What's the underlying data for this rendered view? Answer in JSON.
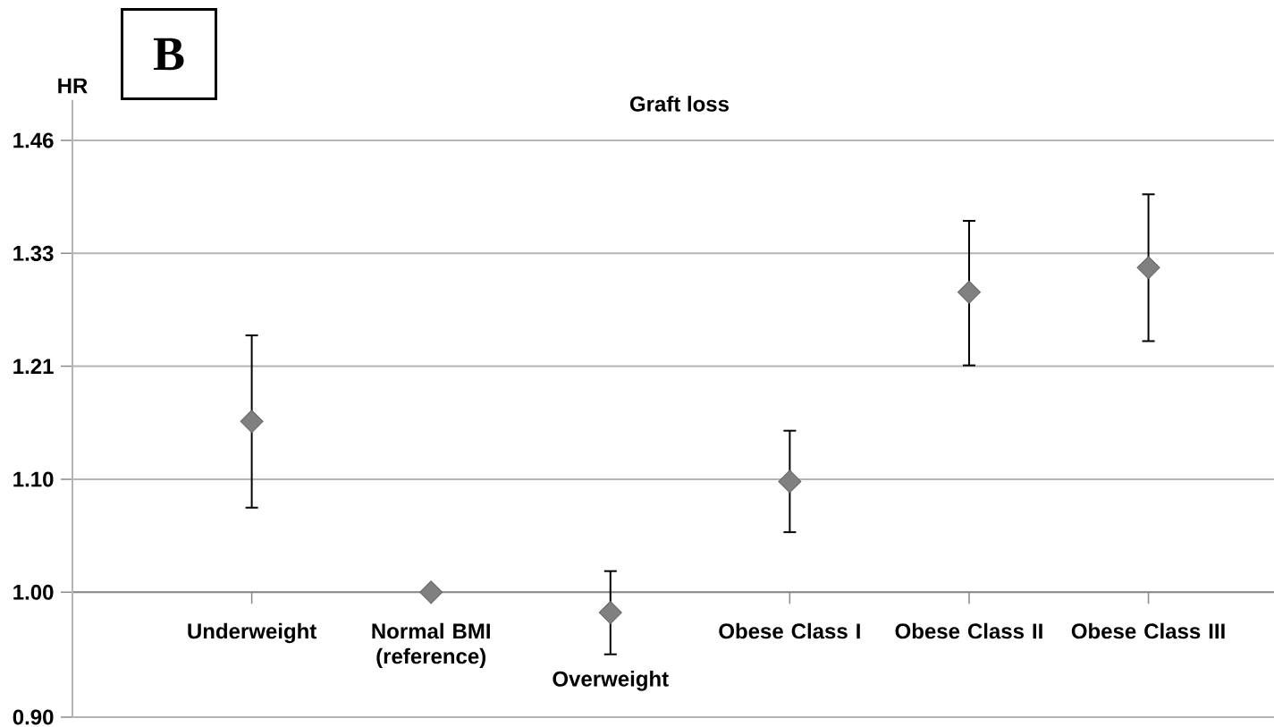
{
  "chart_data": {
    "type": "scatter",
    "title": "Graft loss",
    "ylabel": "HR",
    "annotations": [
      "B"
    ],
    "categories": [
      "Underweight",
      "Normal BMI (reference)",
      "Overweight",
      "Obese Class I",
      "Obese Class II",
      "Obese Class III"
    ],
    "values": [
      1.155,
      1.0,
      0.983,
      1.098,
      1.288,
      1.315
    ],
    "errors": [
      [
        1.074,
        1.242
      ],
      null,
      [
        0.949,
        1.018
      ],
      [
        1.052,
        1.146
      ],
      [
        1.211,
        1.368
      ],
      [
        1.236,
        1.399
      ]
    ],
    "color": "#808080",
    "marker": "diamond",
    "log": "y",
    "grid": "y",
    "ylim": [
      0.9,
      1.515
    ],
    "yticks": [
      {
        "value": 0.9,
        "label": "0.90"
      },
      {
        "value": 1,
        "label": "1.00"
      },
      {
        "value": 1.1,
        "label": "1.10"
      },
      1.21,
      {
        "value": 1.331,
        "label": "1.33"
      },
      {
        "value": 1.4641,
        "label": "1.46"
      }
    ]
  }
}
